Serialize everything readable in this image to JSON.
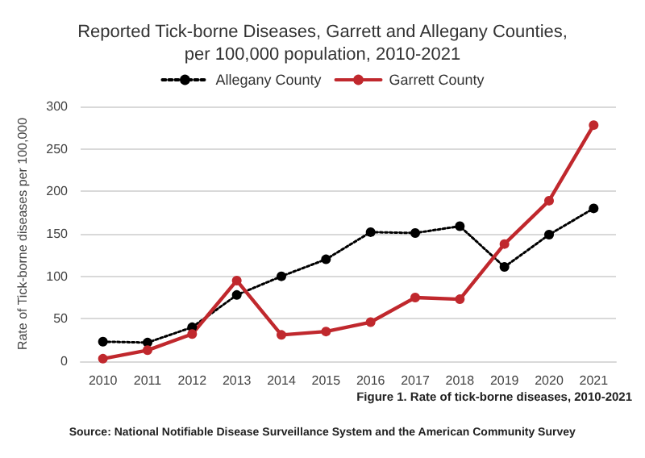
{
  "chart_data": {
    "type": "line",
    "title": "Reported Tick-borne Diseases, Garrett and Allegany Counties,\nper 100,000 population, 2010-2021",
    "ylabel": "Rate of Tick-borne diseases per 100,000",
    "categories": [
      "2010",
      "2011",
      "2012",
      "2013",
      "2014",
      "2015",
      "2016",
      "2017",
      "2018",
      "2019",
      "2020",
      "2021"
    ],
    "series": [
      {
        "name": "Allegany County",
        "color": "#000000",
        "line_style": "dotted",
        "values": [
          23,
          22,
          40,
          78,
          100,
          120,
          152,
          151,
          159,
          111,
          149,
          180
        ]
      },
      {
        "name": "Garrett County",
        "color": "#c0282d",
        "line_style": "solid",
        "values": [
          3,
          13,
          32,
          95,
          31,
          35,
          46,
          75,
          73,
          138,
          189,
          278
        ]
      }
    ],
    "ylim": [
      0,
      300
    ],
    "yticks": [
      0,
      50,
      100,
      150,
      200,
      250,
      300
    ],
    "grid": "y",
    "legend": "top",
    "marker": "circle",
    "annotations": [
      "Figure 1. Rate of tick-borne diseases, 2010-2021",
      "Source: National Notifiable Disease Surveillance System and the American Community Survey"
    ]
  }
}
